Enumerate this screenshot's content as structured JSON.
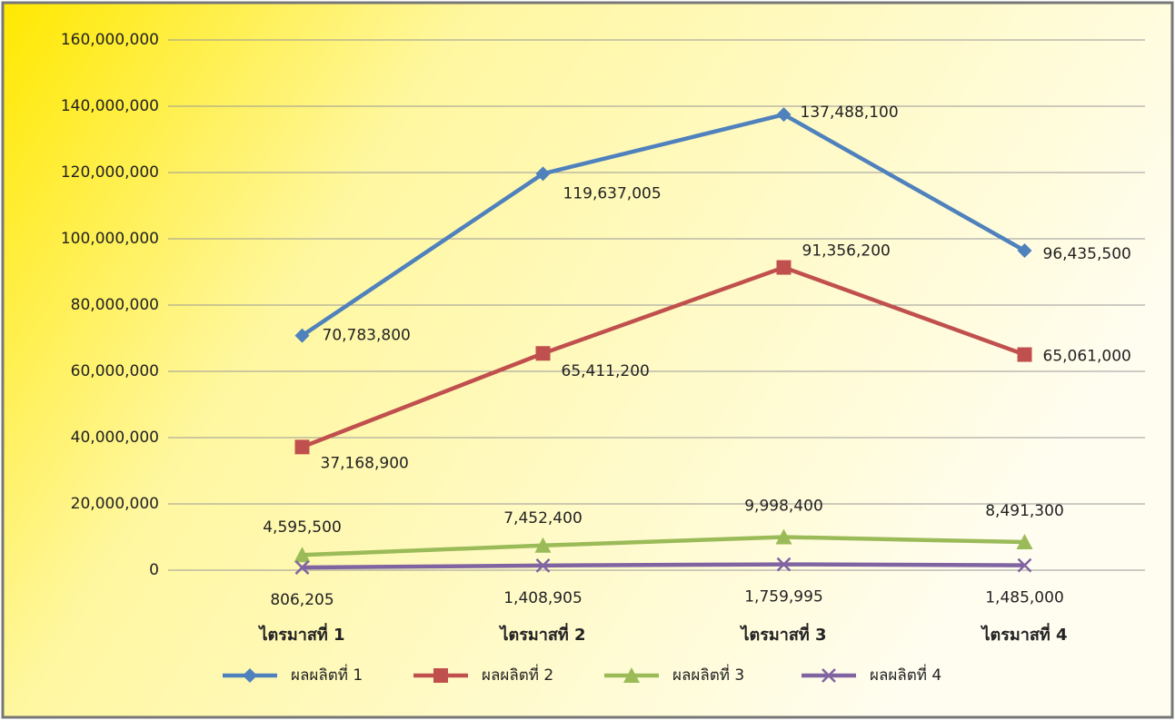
{
  "chart_data": {
    "type": "line",
    "categories": [
      "ไตรมาสที่ 1",
      "ไตรมาสที่ 2",
      "ไตรมาสที่ 3",
      "ไตรมาสที่ 4"
    ],
    "series": [
      {
        "name": "ผลผลิตที่ 1",
        "color": "#4f81bd",
        "marker": "diamond",
        "values": [
          70783800,
          119637005,
          137488100,
          96435500
        ],
        "value_labels": [
          "70,783,800",
          "119,637,005",
          "137,488,100",
          "96,435,500"
        ]
      },
      {
        "name": "ผลผลิตที่ 2",
        "color": "#c0504d",
        "marker": "square",
        "values": [
          37168900,
          65411200,
          91356200,
          65061000
        ],
        "value_labels": [
          "37,168,900",
          "65,411,200",
          "91,356,200",
          "65,061,000"
        ]
      },
      {
        "name": "ผลผลิตที่ 3",
        "color": "#9bbb59",
        "marker": "triangle",
        "values": [
          4595500,
          7452400,
          9998400,
          8491300
        ],
        "value_labels": [
          "4,595,500",
          "7,452,400",
          "9,998,400",
          "8,491,300"
        ]
      },
      {
        "name": "ผลผลิตที่ 4",
        "color": "#8064a2",
        "marker": "x",
        "values": [
          806205,
          1408905,
          1759995,
          1485000
        ],
        "value_labels": [
          "806,205",
          "1,408,905",
          "1,759,995",
          "1,485,000"
        ]
      }
    ],
    "ylim": [
      0,
      160000000
    ],
    "yticks": [
      0,
      {
        "value": 20000000,
        "label": "20,000,000"
      },
      {
        "value": 40000000,
        "label": "40,000,000"
      },
      {
        "value": 60000000,
        "label": "60,000,000"
      },
      {
        "value": 80000000,
        "label": "80,000,000"
      },
      {
        "value": 100000000,
        "label": "100,000,000"
      },
      {
        "value": 120000000,
        "label": "120,000,000"
      },
      {
        "value": 140000000,
        "label": "140,000,000"
      },
      {
        "value": 160000000,
        "label": "160,000,000"
      }
    ],
    "grid": true,
    "legend": "bottom"
  }
}
